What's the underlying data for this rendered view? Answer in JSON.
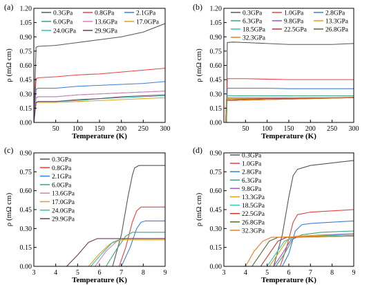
{
  "chart_data": [
    {
      "panel_label": "(a)",
      "type": "line",
      "xlabel": "Temperature (K)",
      "ylabel": "ρ (mΩ cm)",
      "xlim": [
        0,
        300
      ],
      "ylim": [
        0,
        1.2
      ],
      "xticks": [
        "50",
        "100",
        "150",
        "200",
        "250",
        "300"
      ],
      "yticks": [
        "0.00",
        "0.15",
        "0.30",
        "0.45",
        "0.60",
        "0.75",
        "0.90",
        "1.05",
        "1.20"
      ],
      "legend_placement": "top-left",
      "legend_columns": 3,
      "series": [
        {
          "name": "0.3GPa",
          "color": "#555555",
          "x": [
            0,
            5,
            10,
            50,
            100,
            150,
            200,
            250,
            300
          ],
          "y": [
            0,
            0.79,
            0.8,
            0.81,
            0.84,
            0.87,
            0.9,
            0.95,
            1.04
          ]
        },
        {
          "name": "0.8GPa",
          "color": "#e8413f",
          "x": [
            0,
            5,
            10,
            50,
            100,
            150,
            200,
            250,
            300
          ],
          "y": [
            0,
            0.46,
            0.47,
            0.48,
            0.5,
            0.51,
            0.53,
            0.55,
            0.57
          ]
        },
        {
          "name": "2.1GPa",
          "color": "#3a7fd4",
          "x": [
            0,
            5,
            10,
            50,
            100,
            150,
            200,
            250,
            300
          ],
          "y": [
            0,
            0.35,
            0.36,
            0.36,
            0.38,
            0.39,
            0.4,
            0.41,
            0.43
          ]
        },
        {
          "name": "6.0GPa",
          "color": "#3aa676",
          "x": [
            0,
            5,
            10,
            50,
            100,
            150,
            200,
            250,
            300
          ],
          "y": [
            0,
            0.26,
            0.27,
            0.27,
            0.29,
            0.3,
            0.31,
            0.32,
            0.33
          ]
        },
        {
          "name": "13.6GPa",
          "color": "#d47fc0",
          "x": [
            0,
            5,
            10,
            50,
            100,
            150,
            200,
            250,
            300
          ],
          "y": [
            0,
            0.26,
            0.27,
            0.27,
            0.29,
            0.3,
            0.31,
            0.32,
            0.33
          ]
        },
        {
          "name": "17.0GPa",
          "color": "#d9a41c",
          "x": [
            0,
            5,
            10,
            50,
            100,
            150,
            200,
            250,
            300
          ],
          "y": [
            0,
            0.21,
            0.21,
            0.21,
            0.22,
            0.23,
            0.24,
            0.25,
            0.26
          ]
        },
        {
          "name": "24.0GPa",
          "color": "#2ec4b6",
          "x": [
            0,
            5,
            10,
            50,
            100,
            150,
            200,
            250,
            300
          ],
          "y": [
            0,
            0.21,
            0.22,
            0.22,
            0.23,
            0.25,
            0.26,
            0.27,
            0.28
          ]
        },
        {
          "name": "29.9GPa",
          "color": "#6b3a5c",
          "x": [
            0,
            5,
            10,
            50,
            100,
            150,
            200,
            250,
            300
          ],
          "y": [
            0,
            0.21,
            0.22,
            0.22,
            0.24,
            0.25,
            0.27,
            0.28,
            0.29
          ]
        }
      ]
    },
    {
      "panel_label": "(b)",
      "type": "line",
      "xlabel": "Temperature (K)",
      "ylabel": "ρ (mΩ cm)",
      "xlim": [
        0,
        300
      ],
      "ylim": [
        0,
        1.2
      ],
      "xticks": [
        "50",
        "100",
        "150",
        "200",
        "250",
        "300"
      ],
      "yticks": [
        "0.00",
        "0.15",
        "0.30",
        "0.45",
        "0.60",
        "0.75",
        "0.90",
        "1.05",
        "1.20"
      ],
      "legend_placement": "top-left",
      "legend_columns": 3,
      "series": [
        {
          "name": "0.3GPa",
          "color": "#555555",
          "x": [
            0,
            6,
            8,
            20,
            50,
            100,
            150,
            200,
            250,
            300
          ],
          "y": [
            0,
            0,
            0.84,
            0.845,
            0.84,
            0.83,
            0.82,
            0.82,
            0.82,
            0.83
          ]
        },
        {
          "name": "1.0GPa",
          "color": "#e8413f",
          "x": [
            0,
            6,
            8,
            20,
            50,
            100,
            150,
            200,
            250,
            300
          ],
          "y": [
            0,
            0,
            0.46,
            0.46,
            0.46,
            0.455,
            0.45,
            0.45,
            0.45,
            0.45
          ]
        },
        {
          "name": "2.8GPa",
          "color": "#3a7fd4",
          "x": [
            0,
            6,
            8,
            20,
            50,
            100,
            150,
            200,
            250,
            300
          ],
          "y": [
            0,
            0,
            0.36,
            0.36,
            0.36,
            0.36,
            0.355,
            0.355,
            0.355,
            0.355
          ]
        },
        {
          "name": "6.3GPa",
          "color": "#3aa676",
          "x": [
            0,
            6,
            8,
            20,
            50,
            100,
            150,
            200,
            250,
            300
          ],
          "y": [
            0,
            0,
            0.28,
            0.28,
            0.28,
            0.28,
            0.28,
            0.28,
            0.28,
            0.28
          ]
        },
        {
          "name": "9.8GPa",
          "color": "#9b59b6",
          "x": [
            0,
            5,
            7,
            20,
            50,
            100,
            150,
            200,
            250,
            300
          ],
          "y": [
            0,
            0,
            0.26,
            0.26,
            0.26,
            0.26,
            0.26,
            0.26,
            0.26,
            0.26
          ]
        },
        {
          "name": "13.3GPa",
          "color": "#d9a41c",
          "x": [
            0,
            5,
            7,
            20,
            50,
            100,
            150,
            200,
            250,
            300
          ],
          "y": [
            0,
            0,
            0.25,
            0.25,
            0.25,
            0.25,
            0.255,
            0.255,
            0.26,
            0.26
          ]
        },
        {
          "name": "18.5GPa",
          "color": "#2ec4b6",
          "x": [
            0,
            5,
            7,
            20,
            50,
            100,
            150,
            200,
            250,
            300
          ],
          "y": [
            0,
            0,
            0.24,
            0.24,
            0.245,
            0.25,
            0.25,
            0.255,
            0.26,
            0.26
          ]
        },
        {
          "name": "22.5GPa",
          "color": "#c0392b",
          "x": [
            0,
            4,
            6,
            20,
            50,
            100,
            150,
            200,
            250,
            300
          ],
          "y": [
            0,
            0,
            0.24,
            0.24,
            0.245,
            0.25,
            0.25,
            0.255,
            0.26,
            0.265
          ]
        },
        {
          "name": "26.8GPa",
          "color": "#556b2f",
          "x": [
            0,
            4,
            6,
            20,
            50,
            100,
            150,
            200,
            250,
            300
          ],
          "y": [
            0,
            0,
            0.23,
            0.23,
            0.235,
            0.24,
            0.245,
            0.25,
            0.255,
            0.26
          ]
        },
        {
          "name": "32.3GPa",
          "color": "#e67e22",
          "x": [
            0,
            4,
            6,
            20,
            50,
            100,
            150,
            200,
            250,
            300
          ],
          "y": [
            0,
            0,
            0.23,
            0.23,
            0.235,
            0.24,
            0.245,
            0.25,
            0.255,
            0.26
          ]
        }
      ]
    },
    {
      "panel_label": "(c)",
      "type": "line",
      "xlabel": "Temperature (K)",
      "ylabel": "ρ (mΩ cm)",
      "xlim": [
        3,
        9
      ],
      "ylim": [
        0,
        0.9
      ],
      "xticks": [
        "3",
        "4",
        "5",
        "6",
        "7",
        "8",
        "9"
      ],
      "yticks": [
        "0.00",
        "0.15",
        "0.30",
        "0.45",
        "0.60",
        "0.75",
        "0.90"
      ],
      "legend_placement": "top-left",
      "legend_columns": 1,
      "series": [
        {
          "name": "0.3GPa",
          "color": "#555555",
          "x": [
            3,
            6.6,
            7.0,
            7.3,
            7.5,
            7.6,
            7.8,
            9
          ],
          "y": [
            0,
            0,
            0.25,
            0.55,
            0.72,
            0.78,
            0.8,
            0.8
          ]
        },
        {
          "name": "0.8GPa",
          "color": "#e8413f",
          "x": [
            3,
            6.9,
            7.2,
            7.5,
            7.7,
            7.9,
            9
          ],
          "y": [
            0,
            0,
            0.15,
            0.35,
            0.44,
            0.47,
            0.47
          ]
        },
        {
          "name": "2.1GPa",
          "color": "#3a7fd4",
          "x": [
            3,
            7.0,
            7.4,
            7.7,
            7.9,
            8.1,
            9
          ],
          "y": [
            0,
            0,
            0.15,
            0.3,
            0.35,
            0.36,
            0.36
          ]
        },
        {
          "name": "6.0GPa",
          "color": "#3aa676",
          "x": [
            3,
            6.3,
            6.8,
            7.2,
            7.5,
            9
          ],
          "y": [
            0,
            0,
            0.14,
            0.24,
            0.27,
            0.27
          ]
        },
        {
          "name": "13.6GPa",
          "color": "#d47fc0",
          "x": [
            3,
            5.8,
            6.3,
            6.8,
            7.2,
            9
          ],
          "y": [
            0,
            0,
            0.12,
            0.2,
            0.22,
            0.22
          ]
        },
        {
          "name": "17.0GPa",
          "color": "#d9a41c",
          "x": [
            3,
            5.5,
            6.0,
            6.5,
            7.0,
            9
          ],
          "y": [
            0,
            0,
            0.1,
            0.18,
            0.21,
            0.21
          ]
        },
        {
          "name": "24.0GPa",
          "color": "#2ec4b6",
          "x": [
            3,
            5.6,
            6.1,
            6.6,
            7.0,
            9
          ],
          "y": [
            0,
            0,
            0.1,
            0.19,
            0.22,
            0.22
          ]
        },
        {
          "name": "29.9GPa",
          "color": "#6b3a5c",
          "x": [
            3,
            4.5,
            5.0,
            5.5,
            5.9,
            9
          ],
          "y": [
            0,
            0,
            0.09,
            0.19,
            0.22,
            0.22
          ]
        }
      ]
    },
    {
      "panel_label": "(d)",
      "type": "line",
      "xlabel": "Temperature (K)",
      "ylabel": "ρ (mΩ cm)",
      "xlim": [
        3,
        9
      ],
      "ylim": [
        0,
        0.9
      ],
      "xticks": [
        "3",
        "4",
        "5",
        "6",
        "7",
        "8",
        "9"
      ],
      "yticks": [
        "0.00",
        "0.15",
        "0.30",
        "0.45",
        "0.60",
        "0.75",
        "0.90"
      ],
      "legend_placement": "top-left",
      "legend_columns": 1,
      "series": [
        {
          "name": "0.3GPa",
          "color": "#555555",
          "x": [
            3,
            5.3,
            5.7,
            6.0,
            6.2,
            6.4,
            7.0,
            8.0,
            9
          ],
          "y": [
            0,
            0,
            0.25,
            0.55,
            0.72,
            0.77,
            0.8,
            0.82,
            0.84
          ]
        },
        {
          "name": "1.0GPa",
          "color": "#e8413f",
          "x": [
            3,
            5.6,
            5.9,
            6.2,
            6.4,
            7.0,
            8.0,
            9
          ],
          "y": [
            0,
            0,
            0.15,
            0.35,
            0.41,
            0.43,
            0.44,
            0.45
          ]
        },
        {
          "name": "2.8GPa",
          "color": "#3a7fd4",
          "x": [
            3,
            5.7,
            6.0,
            6.3,
            6.6,
            7.0,
            8.0,
            9
          ],
          "y": [
            0,
            0,
            0.1,
            0.28,
            0.33,
            0.34,
            0.35,
            0.36
          ]
        },
        {
          "name": "6.3GPa",
          "color": "#3aa676",
          "x": [
            3,
            5.4,
            5.8,
            6.2,
            6.6,
            7.5,
            9
          ],
          "y": [
            0,
            0,
            0.1,
            0.22,
            0.25,
            0.27,
            0.28
          ]
        },
        {
          "name": "9.8GPa",
          "color": "#9b59b6",
          "x": [
            3,
            5.3,
            5.7,
            6.1,
            6.5,
            9
          ],
          "y": [
            0,
            0,
            0.1,
            0.21,
            0.24,
            0.26
          ]
        },
        {
          "name": "13.3GPa",
          "color": "#d9a41c",
          "x": [
            3,
            5.1,
            5.5,
            5.9,
            6.3,
            9
          ],
          "y": [
            0,
            0,
            0.1,
            0.2,
            0.24,
            0.25
          ]
        },
        {
          "name": "18.5GPa",
          "color": "#2ec4b6",
          "x": [
            3,
            5.0,
            5.4,
            5.8,
            6.2,
            9
          ],
          "y": [
            0,
            0,
            0.1,
            0.2,
            0.23,
            0.25
          ]
        },
        {
          "name": "22.5GPa",
          "color": "#c0392b",
          "x": [
            3,
            4.7,
            5.1,
            5.5,
            5.9,
            9
          ],
          "y": [
            0,
            0,
            0.1,
            0.2,
            0.23,
            0.24
          ]
        },
        {
          "name": "26.8GPa",
          "color": "#556b2f",
          "x": [
            3,
            4.3,
            4.7,
            5.1,
            5.5,
            9
          ],
          "y": [
            0,
            0,
            0.1,
            0.2,
            0.23,
            0.24
          ]
        },
        {
          "name": "32.3GPa",
          "color": "#e67e22",
          "x": [
            3,
            4.0,
            4.4,
            4.8,
            5.2,
            9
          ],
          "y": [
            0,
            0,
            0.12,
            0.2,
            0.23,
            0.24
          ]
        }
      ]
    }
  ]
}
